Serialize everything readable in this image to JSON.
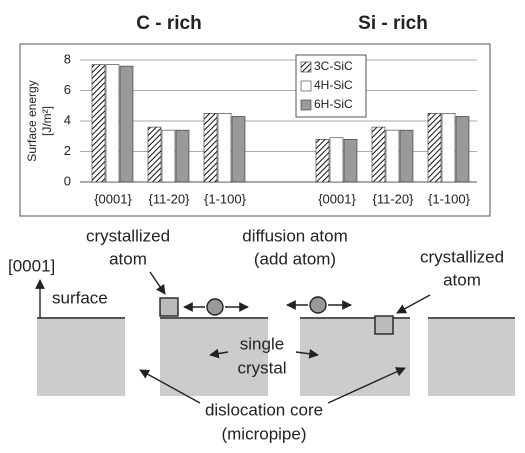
{
  "chart_data": {
    "type": "bar",
    "group_labels": [
      "C - rich",
      "Si - rich"
    ],
    "ylabel": [
      "Surface energy",
      "[J/m²]"
    ],
    "categories": [
      "{0001}",
      "{11-20}",
      "{1-100}",
      null,
      "{0001}",
      "{11-20}",
      "{1-100}"
    ],
    "series": [
      {
        "name": "3C-SiC",
        "color": "hatch",
        "values": [
          7.7,
          3.6,
          4.5,
          null,
          2.8,
          3.6,
          4.5
        ]
      },
      {
        "name": "4H-SiC",
        "color": "#ffffff",
        "values": [
          7.7,
          3.4,
          4.5,
          null,
          2.9,
          3.4,
          4.5
        ]
      },
      {
        "name": "6H-SiC",
        "color": "#9a9a9a",
        "values": [
          7.6,
          3.4,
          4.3,
          null,
          2.8,
          3.4,
          4.3
        ]
      }
    ],
    "ylim": [
      0,
      8
    ],
    "yticks": [
      0,
      2,
      4,
      6,
      8
    ],
    "grid": true,
    "legend": "upper-right"
  },
  "diagram": {
    "direction": "[0001]",
    "surface": "surface",
    "crystallized_left": [
      "crystallized",
      "atom"
    ],
    "diffusion": [
      "diffusion atom",
      "(add atom)"
    ],
    "crystallized_right": [
      "crystallized",
      "atom"
    ],
    "single_crystal": [
      "single",
      "crystal"
    ],
    "dislocation": [
      "dislocation core",
      "(micropipe)"
    ]
  }
}
